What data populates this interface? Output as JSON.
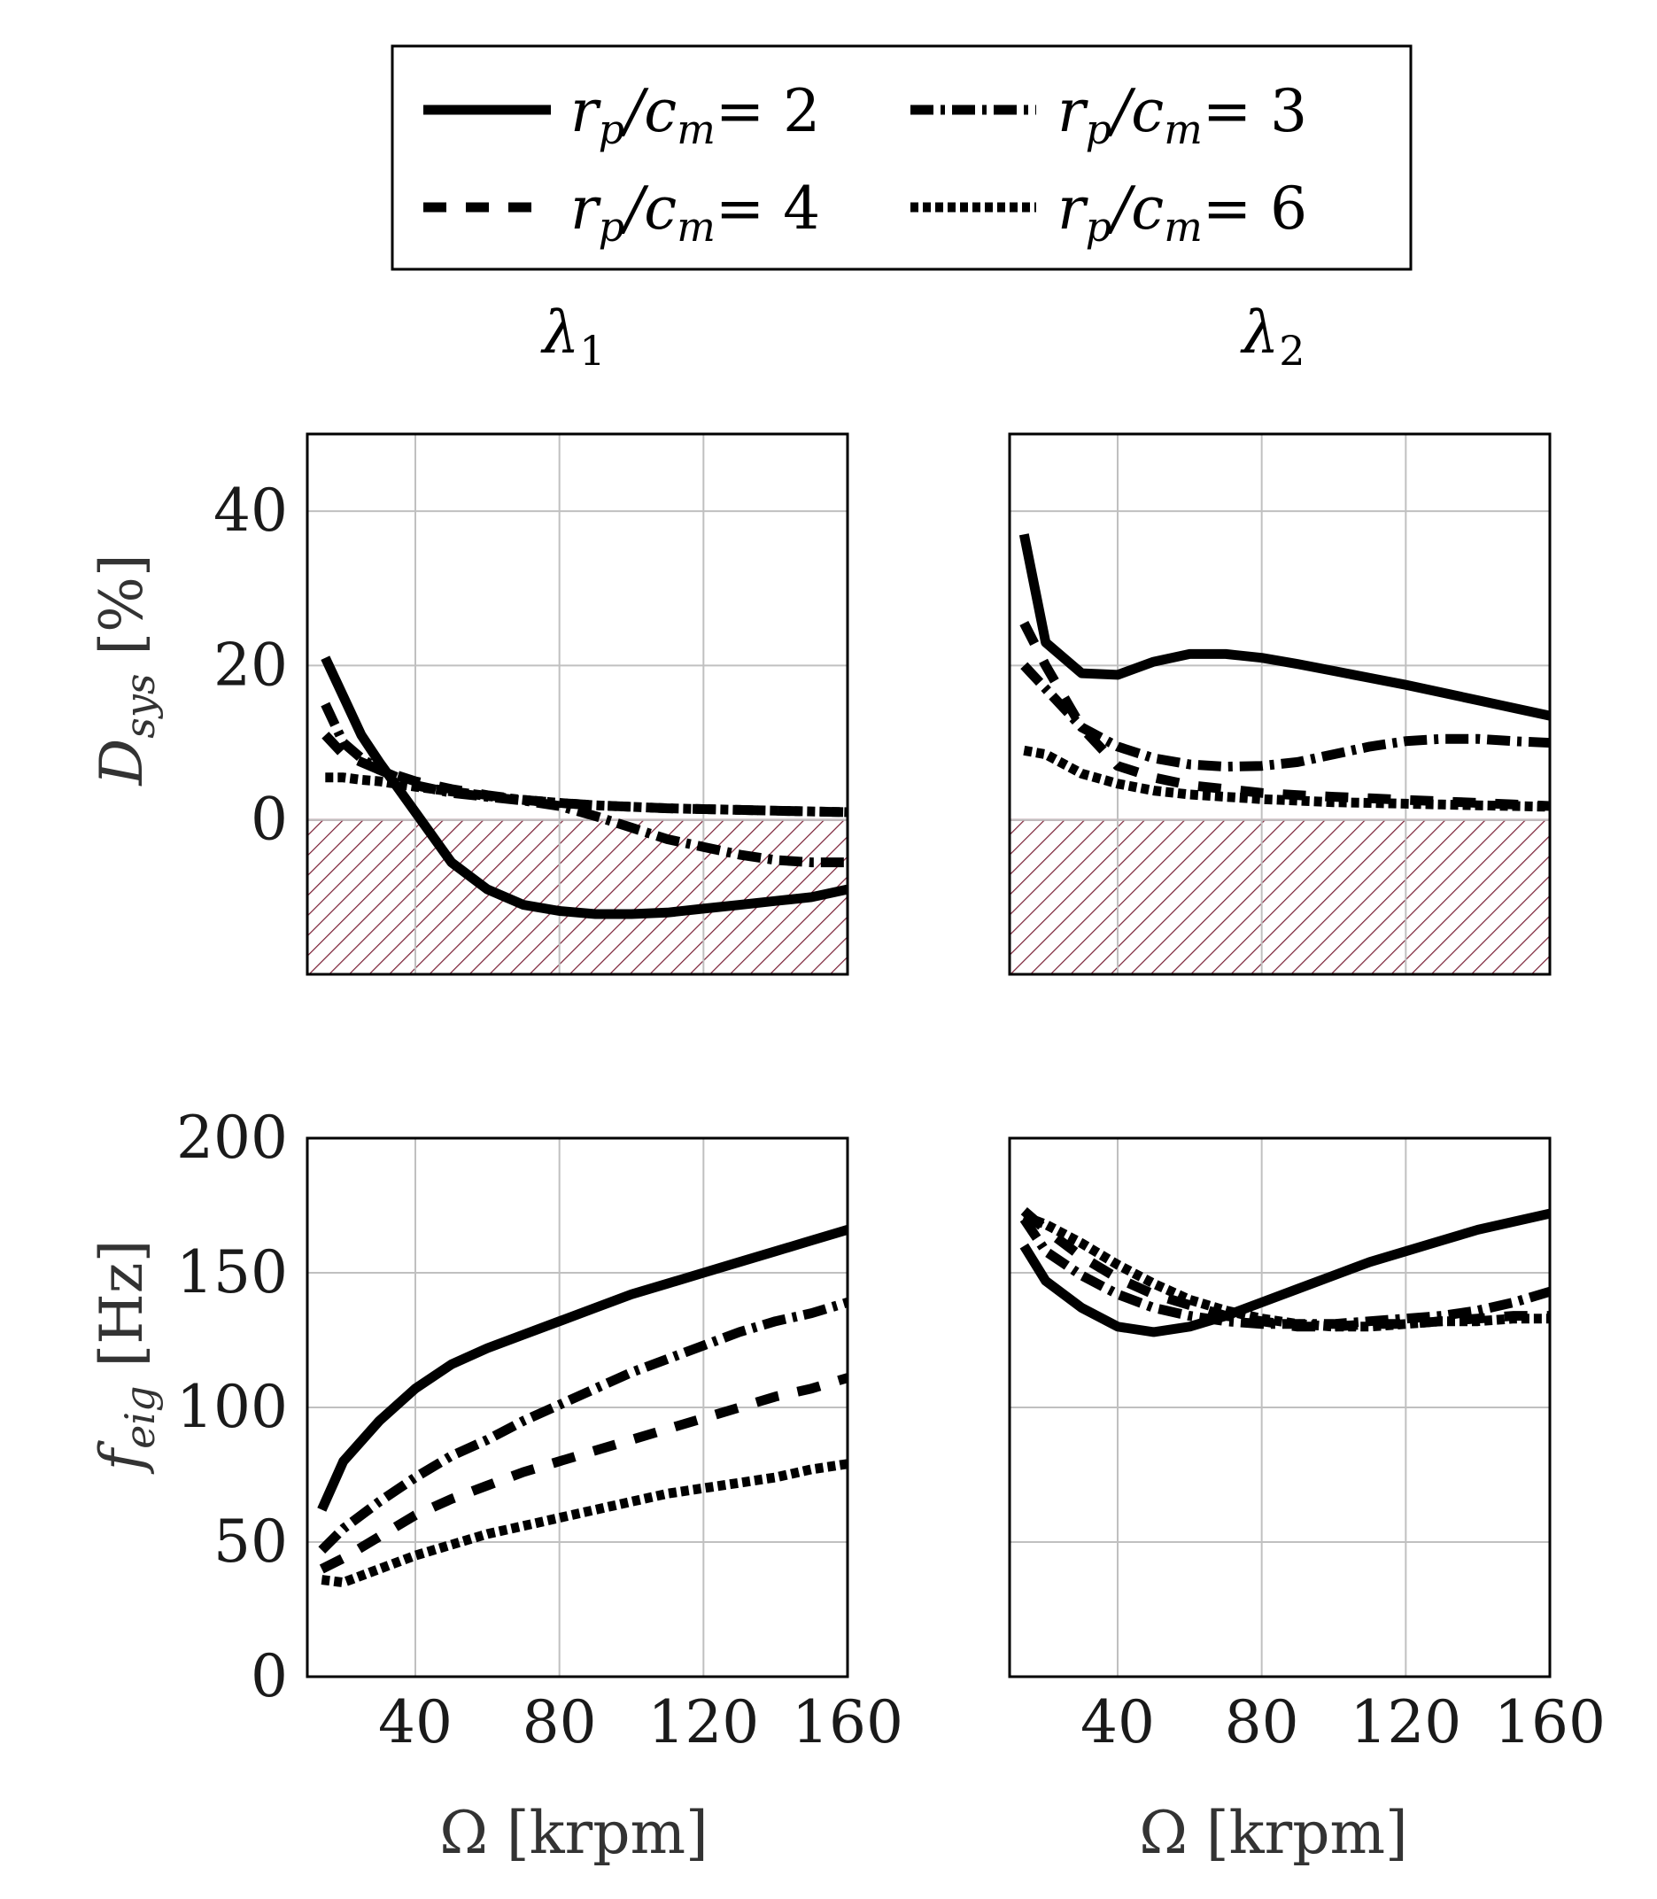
{
  "legend": {
    "entries": [
      {
        "label": "r_p/c_m = 2",
        "ratio": "2",
        "style": "solid"
      },
      {
        "label": "r_p/c_m = 3",
        "ratio": "3",
        "style": "dashdot"
      },
      {
        "label": "r_p/c_m = 4",
        "ratio": "4",
        "style": "dashed"
      },
      {
        "label": "r_p/c_m = 6",
        "ratio": "6",
        "style": "dotted"
      }
    ]
  },
  "columns": [
    {
      "title_base": "λ",
      "title_sub": "1"
    },
    {
      "title_base": "λ",
      "title_sub": "2"
    }
  ],
  "colors": {
    "line": "#000000",
    "hatch": "#7a1f35",
    "grid": "#c0c0c0",
    "frame": "#000000",
    "text": "#1a1a1a"
  },
  "chart_data": [
    {
      "type": "line",
      "id": "damping-lambda1",
      "title": "λ1",
      "xlabel": "Ω [krpm]",
      "ylabel": "D_sys [%]",
      "ylabel_parts": {
        "base": "D",
        "sub": "sys",
        "unit": "[%]"
      },
      "xlim": [
        10,
        160
      ],
      "ylim": [
        -20,
        50
      ],
      "xticks": [
        40,
        80,
        120,
        160
      ],
      "yticks": [
        0,
        20,
        40
      ],
      "xtick_labels_shown": false,
      "ytick_labels_shown": true,
      "unstable_region": [
        -20,
        0
      ],
      "grid": true,
      "series": [
        {
          "name": "r_p/c_m = 2",
          "style": "solid",
          "x": [
            15,
            20,
            25,
            30,
            40,
            50,
            60,
            70,
            80,
            90,
            100,
            110,
            120,
            130,
            140,
            150,
            160
          ],
          "y": [
            21,
            16,
            11,
            7.5,
            1,
            -5.5,
            -9,
            -11,
            -11.8,
            -12.2,
            -12.2,
            -12,
            -11.5,
            -11,
            -10.5,
            -10,
            -9
          ]
        },
        {
          "name": "r_p/c_m = 3",
          "style": "dashdot",
          "x": [
            15,
            20,
            25,
            30,
            40,
            50,
            60,
            70,
            80,
            90,
            100,
            110,
            120,
            130,
            140,
            150,
            160
          ],
          "y": [
            15,
            10,
            8,
            6.5,
            4.5,
            3.5,
            3,
            2.5,
            1.8,
            0.5,
            -1,
            -2.5,
            -3.5,
            -4.5,
            -5.2,
            -5.5,
            -5.5
          ]
        },
        {
          "name": "r_p/c_m = 4",
          "style": "dashed",
          "x": [
            15,
            20,
            25,
            30,
            40,
            50,
            60,
            70,
            80,
            90,
            100,
            110,
            120,
            130,
            140,
            150,
            160
          ],
          "y": [
            11,
            8.5,
            7.5,
            6.5,
            5,
            4,
            3.2,
            2.6,
            2.2,
            1.9,
            1.7,
            1.5,
            1.4,
            1.3,
            1.2,
            1.1,
            1
          ]
        },
        {
          "name": "r_p/c_m = 6",
          "style": "dotted",
          "x": [
            15,
            20,
            25,
            30,
            40,
            50,
            60,
            70,
            80,
            90,
            100,
            110,
            120,
            130,
            140,
            150,
            160
          ],
          "y": [
            5.5,
            5.5,
            5.2,
            5,
            4.3,
            3.7,
            3.1,
            2.6,
            2.2,
            1.9,
            1.7,
            1.5,
            1.4,
            1.3,
            1.2,
            1.1,
            1
          ]
        }
      ]
    },
    {
      "type": "line",
      "id": "damping-lambda2",
      "title": "λ2",
      "xlabel": "Ω [krpm]",
      "ylabel": "",
      "xlim": [
        10,
        160
      ],
      "ylim": [
        -20,
        50
      ],
      "xticks": [
        40,
        80,
        120,
        160
      ],
      "yticks": [
        0,
        20,
        40
      ],
      "xtick_labels_shown": false,
      "ytick_labels_shown": false,
      "unstable_region": [
        -20,
        0
      ],
      "grid": true,
      "series": [
        {
          "name": "r_p/c_m = 2",
          "style": "solid",
          "x": [
            14,
            20,
            30,
            40,
            50,
            60,
            70,
            80,
            90,
            100,
            110,
            120,
            130,
            140,
            150,
            160
          ],
          "y": [
            37,
            23,
            19,
            18.8,
            20.5,
            21.5,
            21.5,
            21,
            20.2,
            19.3,
            18.4,
            17.5,
            16.5,
            15.5,
            14.5,
            13.5
          ]
        },
        {
          "name": "r_p/c_m = 3",
          "style": "dashdot",
          "x": [
            14,
            20,
            30,
            40,
            50,
            60,
            70,
            80,
            90,
            100,
            110,
            120,
            130,
            140,
            150,
            160
          ],
          "y": [
            20,
            17,
            12,
            9.5,
            8,
            7.2,
            6.9,
            7,
            7.5,
            8.5,
            9.5,
            10.2,
            10.5,
            10.5,
            10.2,
            10
          ]
        },
        {
          "name": "r_p/c_m = 4",
          "style": "dashed",
          "x": [
            14,
            20,
            30,
            40,
            50,
            60,
            70,
            80,
            90,
            100,
            110,
            120,
            130,
            140,
            150,
            160
          ],
          "y": [
            25.5,
            20,
            12,
            7,
            5.5,
            4.5,
            4,
            3.5,
            3.2,
            3,
            2.8,
            2.6,
            2.4,
            2.2,
            2,
            1.8
          ]
        },
        {
          "name": "r_p/c_m = 6",
          "style": "dotted",
          "x": [
            14,
            20,
            30,
            40,
            50,
            60,
            70,
            80,
            90,
            100,
            110,
            120,
            130,
            140,
            150,
            160
          ],
          "y": [
            9,
            8.5,
            6,
            4.7,
            3.8,
            3.3,
            3,
            2.7,
            2.5,
            2.3,
            2.2,
            2.1,
            2,
            1.9,
            1.8,
            1.7
          ]
        }
      ]
    },
    {
      "type": "line",
      "id": "frequency-lambda1",
      "title": "λ1",
      "xlabel": "Ω [krpm]",
      "ylabel": "f_eig [Hz]",
      "ylabel_parts": {
        "base": "f",
        "sub": "eig",
        "unit": "[Hz]"
      },
      "xlim": [
        10,
        160
      ],
      "ylim": [
        0,
        200
      ],
      "xticks": [
        40,
        80,
        120,
        160
      ],
      "yticks": [
        0,
        50,
        100,
        150,
        200
      ],
      "xtick_labels_shown": true,
      "ytick_labels_shown": true,
      "grid": true,
      "series": [
        {
          "name": "r_p/c_m = 2",
          "style": "solid",
          "x": [
            14,
            20,
            30,
            40,
            50,
            60,
            70,
            80,
            90,
            100,
            110,
            120,
            130,
            140,
            150,
            160
          ],
          "y": [
            62,
            80,
            95,
            107,
            116,
            122,
            127,
            132,
            137,
            142,
            146,
            150,
            154,
            158,
            162,
            166
          ]
        },
        {
          "name": "r_p/c_m = 3",
          "style": "dashdot",
          "x": [
            14,
            20,
            30,
            40,
            50,
            60,
            70,
            80,
            90,
            100,
            110,
            120,
            130,
            140,
            150,
            160
          ],
          "y": [
            47,
            55,
            65,
            74,
            82,
            88,
            95,
            101,
            107,
            113,
            118,
            123,
            128,
            132,
            135,
            139
          ]
        },
        {
          "name": "r_p/c_m = 4",
          "style": "dashed",
          "x": [
            14,
            20,
            30,
            40,
            50,
            60,
            70,
            80,
            90,
            100,
            110,
            120,
            130,
            140,
            150,
            160
          ],
          "y": [
            40,
            44,
            52,
            60,
            66,
            71,
            76,
            80,
            84,
            88,
            92,
            96,
            100,
            104,
            107,
            111
          ]
        },
        {
          "name": "r_p/c_m = 6",
          "style": "dotted",
          "x": [
            14,
            20,
            30,
            40,
            50,
            60,
            70,
            80,
            90,
            100,
            110,
            120,
            130,
            140,
            150,
            160
          ],
          "y": [
            36,
            35,
            40,
            45,
            49,
            53,
            56,
            59,
            62,
            65,
            68,
            70,
            72,
            74,
            77,
            79
          ]
        }
      ]
    },
    {
      "type": "line",
      "id": "frequency-lambda2",
      "title": "λ2",
      "xlabel": "Ω [krpm]",
      "ylabel": "",
      "xlim": [
        10,
        160
      ],
      "ylim": [
        0,
        200
      ],
      "xticks": [
        40,
        80,
        120,
        160
      ],
      "yticks": [
        0,
        50,
        100,
        150,
        200
      ],
      "xtick_labels_shown": true,
      "ytick_labels_shown": false,
      "grid": true,
      "series": [
        {
          "name": "r_p/c_m = 2",
          "style": "solid",
          "x": [
            14,
            20,
            30,
            40,
            50,
            60,
            70,
            80,
            90,
            100,
            110,
            120,
            130,
            140,
            150,
            160
          ],
          "y": [
            160,
            147,
            137,
            130,
            128,
            130,
            134,
            139,
            144,
            149,
            154,
            158,
            162,
            166,
            169,
            172
          ]
        },
        {
          "name": "r_p/c_m = 3",
          "style": "dashdot",
          "x": [
            14,
            20,
            30,
            40,
            50,
            60,
            70,
            80,
            90,
            100,
            110,
            120,
            130,
            140,
            150,
            160
          ],
          "y": [
            170,
            158,
            149,
            142,
            137,
            134,
            132,
            131,
            131,
            131,
            132,
            133,
            134,
            136,
            139,
            143
          ]
        },
        {
          "name": "r_p/c_m = 4",
          "style": "dashed",
          "x": [
            14,
            20,
            30,
            40,
            50,
            60,
            70,
            80,
            90,
            100,
            110,
            120,
            130,
            140,
            150,
            160
          ],
          "y": [
            173,
            166,
            156,
            148,
            142,
            138,
            134,
            132,
            130,
            130,
            131,
            131,
            132,
            133,
            134,
            134
          ]
        },
        {
          "name": "r_p/c_m = 6",
          "style": "dotted",
          "x": [
            14,
            20,
            30,
            40,
            50,
            60,
            70,
            80,
            90,
            100,
            110,
            120,
            130,
            140,
            150,
            160
          ],
          "y": [
            171,
            168,
            161,
            153,
            146,
            140,
            136,
            133,
            131,
            130,
            130,
            131,
            132,
            132,
            133,
            133
          ]
        }
      ]
    }
  ]
}
